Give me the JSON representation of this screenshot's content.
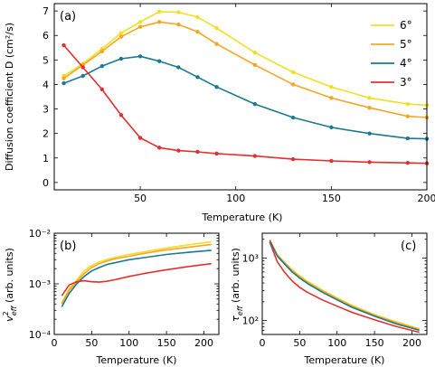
{
  "chart_data": [
    {
      "panel_label": "(a)",
      "type": "line",
      "xlabel": "Temperature (K)",
      "ylabel": "Diffusion coefficient D (cm²/s)",
      "xlim": [
        5,
        200
      ],
      "ylim": [
        -0.3,
        7.3
      ],
      "xticks": [
        50,
        100,
        150,
        200
      ],
      "yticks": [
        0,
        1,
        2,
        3,
        4,
        5,
        6,
        7
      ],
      "legend_position": "top-right",
      "x": [
        10,
        20,
        30,
        40,
        50,
        60,
        70,
        80,
        90,
        110,
        130,
        150,
        170,
        190,
        200
      ],
      "series": [
        {
          "name": "6°",
          "color": "#f2df20",
          "values": [
            4.35,
            4.85,
            5.45,
            6.1,
            6.55,
            6.97,
            6.95,
            6.75,
            6.3,
            5.3,
            4.5,
            3.9,
            3.45,
            3.2,
            3.15
          ]
        },
        {
          "name": "5°",
          "color": "#f5a623",
          "values": [
            4.25,
            4.8,
            5.35,
            5.95,
            6.35,
            6.55,
            6.45,
            6.15,
            5.65,
            4.8,
            4.0,
            3.45,
            3.05,
            2.7,
            2.65
          ]
        },
        {
          "name": "4°",
          "color": "#1a7a93",
          "values": [
            4.05,
            4.35,
            4.75,
            5.05,
            5.15,
            4.95,
            4.7,
            4.3,
            3.9,
            3.2,
            2.65,
            2.25,
            2.0,
            1.8,
            1.78
          ]
        },
        {
          "name": "3°",
          "color": "#e23030",
          "values": [
            5.6,
            4.7,
            3.8,
            2.75,
            1.82,
            1.42,
            1.3,
            1.25,
            1.18,
            1.08,
            0.95,
            0.88,
            0.83,
            0.8,
            0.78
          ]
        }
      ]
    },
    {
      "panel_label": "(b)",
      "type": "line",
      "xlabel": "Temperature (K)",
      "ylabel_main": "v",
      "ylabel_sup": "2",
      "ylabel_sub": "eff",
      "ylabel_units": " (arb. units)",
      "yscale": "log",
      "xlim": [
        0,
        220
      ],
      "ylim": [
        0.0001,
        0.01
      ],
      "xticks": [
        0,
        50,
        100,
        150,
        200
      ],
      "ytick_base": "10",
      "ytick_exponents": [
        -4,
        -3,
        -2
      ],
      "x": [
        10,
        20,
        30,
        40,
        50,
        60,
        70,
        80,
        100,
        120,
        150,
        180,
        210
      ],
      "series": [
        {
          "name": "6°",
          "color": "#f2df20",
          "values": [
            0.00042,
            0.0008,
            0.0012,
            0.0018,
            0.0023,
            0.0027,
            0.003,
            0.0033,
            0.0038,
            0.0043,
            0.0051,
            0.0059,
            0.0068
          ]
        },
        {
          "name": "5°",
          "color": "#f5a623",
          "values": [
            0.0004,
            0.00075,
            0.0011,
            0.0016,
            0.0021,
            0.0025,
            0.0028,
            0.0031,
            0.0035,
            0.004,
            0.0047,
            0.0053,
            0.006
          ]
        },
        {
          "name": "4°",
          "color": "#1a7a93",
          "values": [
            0.00035,
            0.00065,
            0.001,
            0.0014,
            0.0018,
            0.0021,
            0.0024,
            0.0026,
            0.003,
            0.0033,
            0.0038,
            0.0042,
            0.0046
          ]
        },
        {
          "name": "3°",
          "color": "#e23030",
          "values": [
            0.00058,
            0.00095,
            0.0011,
            0.00115,
            0.0011,
            0.00108,
            0.00112,
            0.0012,
            0.0014,
            0.0016,
            0.0019,
            0.0022,
            0.0025
          ]
        }
      ]
    },
    {
      "panel_label": "(c)",
      "type": "line",
      "xlabel": "Temperature (K)",
      "ylabel_main": "τ",
      "ylabel_sub": "eff",
      "ylabel_units": " (arb. units)",
      "yscale": "log",
      "xlim": [
        0,
        220
      ],
      "ylim": [
        60,
        2500
      ],
      "xticks": [
        0,
        50,
        100,
        150,
        200
      ],
      "ytick_base": "10",
      "ytick_exponents": [
        2,
        3
      ],
      "x": [
        10,
        20,
        30,
        40,
        50,
        60,
        80,
        100,
        120,
        150,
        180,
        210
      ],
      "series": [
        {
          "name": "6°",
          "color": "#f2df20",
          "values": [
            1950,
            1150,
            850,
            650,
            520,
            430,
            310,
            230,
            175,
            125,
            95,
            74
          ]
        },
        {
          "name": "5°",
          "color": "#f5a623",
          "values": [
            1950,
            1120,
            830,
            630,
            505,
            415,
            300,
            225,
            170,
            122,
            92,
            72
          ]
        },
        {
          "name": "4°",
          "color": "#1a7a93",
          "values": [
            1900,
            1080,
            800,
            600,
            480,
            395,
            285,
            215,
            163,
            118,
            88,
            70
          ]
        },
        {
          "name": "3°",
          "color": "#e23030",
          "values": [
            1800,
            880,
            590,
            430,
            340,
            285,
            215,
            170,
            135,
            103,
            80,
            65
          ]
        }
      ]
    }
  ]
}
